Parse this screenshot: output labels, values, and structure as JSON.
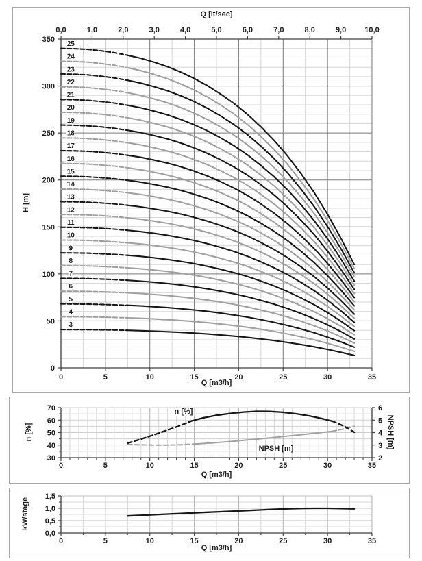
{
  "panels": {
    "head": {
      "top_axis": {
        "title": "Q [lt/sec]",
        "labels": [
          "0,0",
          "1,0",
          "2,0",
          "3,0",
          "4,0",
          "5,0",
          "6,0",
          "7,0",
          "8,0",
          "9,0",
          "10,0"
        ],
        "values": [
          0,
          1,
          2,
          3,
          4,
          5,
          6,
          7,
          8,
          9,
          10
        ]
      },
      "left_axis": {
        "title": "H [m]",
        "labels": [
          "0",
          "50",
          "100",
          "150",
          "200",
          "250",
          "300",
          "350"
        ],
        "values": [
          0,
          50,
          100,
          150,
          200,
          250,
          300,
          350
        ]
      },
      "bottom_axis": {
        "title": "Q [m3/h]",
        "labels": [
          "0",
          "5",
          "10",
          "15",
          "20",
          "25",
          "30",
          "35"
        ],
        "values": [
          0,
          5,
          10,
          15,
          20,
          25,
          30,
          35
        ]
      }
    },
    "efficiency": {
      "left_axis": {
        "title": "n [%]",
        "labels": [
          "30",
          "40",
          "50",
          "60",
          "70"
        ],
        "values": [
          30,
          40,
          50,
          60,
          70
        ]
      },
      "right_axis": {
        "title": "NPSH [m]",
        "labels": [
          "2",
          "3",
          "4",
          "5",
          "6"
        ],
        "values": [
          2,
          3,
          4,
          5,
          6
        ]
      },
      "bottom_axis": {
        "title": "Q [m3/h]",
        "labels": [
          "0",
          "5",
          "10",
          "15",
          "20",
          "25",
          "30",
          "35"
        ],
        "values": [
          0,
          5,
          10,
          15,
          20,
          25,
          30,
          35
        ]
      },
      "plot_labels": {
        "n": "n [%]",
        "npsh": "NPSH [m]"
      }
    },
    "power": {
      "left_axis": {
        "title": "kW/stage",
        "labels": [
          "0,0",
          "0,5",
          "1,0",
          "1,5"
        ],
        "values": [
          0,
          0.5,
          1,
          1.5
        ]
      },
      "bottom_axis": {
        "title": "Q [m3/h]",
        "labels": [
          "0",
          "5",
          "10",
          "15",
          "20",
          "25",
          "30",
          "35"
        ],
        "values": [
          0,
          5,
          10,
          15,
          20,
          25,
          30,
          35
        ]
      }
    }
  },
  "chart_data": [
    {
      "type": "line",
      "name": "head_capacity_stage_curves",
      "xlabel": "Q [m3/h]",
      "ylabel": "H [m]",
      "top_xlabel": "Q [lt/sec]",
      "xlim": [
        0,
        35
      ],
      "ylim": [
        0,
        350
      ],
      "top_xlim": [
        0,
        10
      ],
      "grid": "on",
      "note": "Each numbered curve = stage count x head_per_stage_m; dashed for Q < 7.5 m3/h, solid 7.5-33 m3/h; odd stages black, even stages grey",
      "q_m3h": [
        0,
        1.5,
        3,
        4.5,
        6,
        7.5,
        9,
        10.5,
        12,
        13.5,
        15,
        16.5,
        18,
        19.5,
        21,
        22.5,
        24,
        25.5,
        27,
        28.5,
        30,
        31.5,
        33
      ],
      "head_per_stage_m": [
        13.6,
        13.59,
        13.56,
        13.5,
        13.42,
        13.31,
        13.18,
        13.01,
        12.82,
        12.59,
        12.32,
        12.01,
        11.65,
        11.25,
        10.79,
        10.26,
        9.68,
        9.02,
        8.28,
        7.46,
        6.54,
        5.52,
        4.4
      ],
      "stages": [
        3,
        4,
        5,
        6,
        7,
        8,
        9,
        10,
        11,
        12,
        13,
        14,
        15,
        16,
        17,
        18,
        19,
        20,
        21,
        22,
        23,
        24,
        25
      ],
      "dash_split_q": 7.5,
      "colors": {
        "odd": "#161616",
        "even": "#a0a0a0"
      }
    },
    {
      "type": "line",
      "name": "efficiency_and_npsh",
      "xlabel": "Q [m3/h]",
      "ylabel_left": "n [%]",
      "ylabel_right": "NPSH [m]",
      "xlim": [
        0,
        35
      ],
      "left_ylim": [
        30,
        70
      ],
      "right_ylim": [
        2,
        6
      ],
      "grid": "on",
      "series": [
        {
          "name": "NPSH [m]",
          "axis": "right",
          "color": "#a0a0a0",
          "width": 2,
          "segments": [
            {
              "dash": true,
              "points": [
                [
                  7.5,
                  3.05
                ],
                [
                  9,
                  3.02
                ],
                [
                  10.5,
                  3.0
                ],
                [
                  12,
                  3.0
                ],
                [
                  13.5,
                  3.03
                ],
                [
                  15,
                  3.08
                ]
              ]
            },
            {
              "dash": false,
              "points": [
                [
                  15,
                  3.08
                ],
                [
                  17,
                  3.17
                ],
                [
                  19,
                  3.28
                ],
                [
                  21,
                  3.41
                ],
                [
                  23,
                  3.54
                ],
                [
                  25,
                  3.68
                ],
                [
                  27,
                  3.83
                ],
                [
                  29,
                  3.98
                ],
                [
                  30.5,
                  4.1
                ]
              ]
            },
            {
              "dash": true,
              "points": [
                [
                  30.5,
                  4.1
                ],
                [
                  31.8,
                  4.28
                ],
                [
                  33,
                  4.5
                ]
              ]
            }
          ]
        },
        {
          "name": "n [%]",
          "axis": "left",
          "color": "#161616",
          "width": 2.3,
          "segments": [
            {
              "dash": true,
              "points": [
                [
                  7.5,
                  41.5
                ],
                [
                  9,
                  44.8
                ],
                [
                  10.5,
                  48.3
                ],
                [
                  12,
                  52
                ],
                [
                  13.5,
                  55.8
                ],
                [
                  14.7,
                  59.3
                ]
              ]
            },
            {
              "dash": false,
              "points": [
                [
                  14.7,
                  59.3
                ],
                [
                  16,
                  61.8
                ],
                [
                  17.5,
                  63.8
                ],
                [
                  19,
                  65.3
                ],
                [
                  20.5,
                  66.4
                ],
                [
                  22,
                  67
                ],
                [
                  23.5,
                  66.9
                ],
                [
                  25,
                  66.2
                ],
                [
                  26.5,
                  65
                ],
                [
                  28,
                  63.3
                ],
                [
                  29.3,
                  61.3
                ],
                [
                  30.5,
                  59.2
                ]
              ]
            },
            {
              "dash": true,
              "points": [
                [
                  30.5,
                  59.2
                ],
                [
                  31.8,
                  55.3
                ],
                [
                  33,
                  50.3
                ]
              ]
            }
          ]
        }
      ]
    },
    {
      "type": "line",
      "name": "power_per_stage",
      "xlabel": "Q [m3/h]",
      "ylabel": "kW/stage",
      "xlim": [
        0,
        35
      ],
      "ylim": [
        0,
        1.5
      ],
      "grid": "on",
      "series": [
        {
          "name": "kW/stage",
          "axis": "left",
          "color": "#161616",
          "width": 2.3,
          "segments": [
            {
              "dash": false,
              "points": [
                [
                  7.5,
                  0.69
                ],
                [
                  9,
                  0.715
                ],
                [
                  10.5,
                  0.74
                ],
                [
                  12,
                  0.765
                ],
                [
                  13.5,
                  0.79
                ],
                [
                  15,
                  0.815
                ],
                [
                  16.5,
                  0.84
                ],
                [
                  18,
                  0.862
                ],
                [
                  19.5,
                  0.885
                ],
                [
                  21,
                  0.908
                ],
                [
                  22.5,
                  0.932
                ],
                [
                  24,
                  0.957
                ],
                [
                  25.5,
                  0.98
                ],
                [
                  27,
                  0.995
                ],
                [
                  28.5,
                  1.0
                ],
                [
                  30,
                  1.0
                ],
                [
                  31.5,
                  0.99
                ],
                [
                  33,
                  0.98
                ]
              ]
            }
          ]
        }
      ]
    }
  ]
}
